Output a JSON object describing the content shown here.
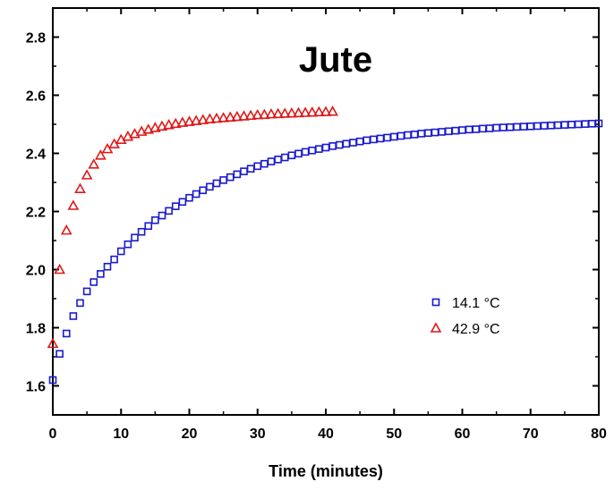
{
  "chart_data": {
    "type": "scatter",
    "title": "Jute",
    "xlabel": "Time (minutes)",
    "ylabel": "",
    "xlim": [
      0,
      80
    ],
    "ylim": [
      1.5,
      2.9
    ],
    "x_ticks": [
      "0",
      "10",
      "20",
      "30",
      "40",
      "50",
      "60",
      "70",
      "80"
    ],
    "y_ticks": [
      "1.6",
      "1.8",
      "2.0",
      "2.2",
      "2.4",
      "2.6",
      "2.8"
    ],
    "grid": false,
    "legend_position": "right",
    "series": [
      {
        "name": "14.1 °C",
        "marker": "square",
        "color": "#1a1acc",
        "x": [
          0,
          1,
          2,
          3,
          4,
          5,
          6,
          7,
          8,
          9,
          10,
          11,
          12,
          13,
          14,
          15,
          16,
          17,
          18,
          19,
          20,
          21,
          22,
          23,
          24,
          25,
          26,
          27,
          28,
          29,
          30,
          31,
          32,
          33,
          34,
          35,
          36,
          37,
          38,
          39,
          40,
          41,
          42,
          43,
          44,
          45,
          46,
          47,
          48,
          49,
          50,
          51,
          52,
          53,
          54,
          55,
          56,
          57,
          58,
          59,
          60,
          61,
          62,
          63,
          64,
          65,
          66,
          67,
          68,
          69,
          70,
          71,
          72,
          73,
          74,
          75,
          76,
          77,
          78,
          79,
          80
        ],
        "y": [
          1.62,
          1.71,
          1.78,
          1.84,
          1.885,
          1.925,
          1.957,
          1.985,
          2.01,
          2.035,
          2.063,
          2.087,
          2.11,
          2.13,
          2.15,
          2.17,
          2.186,
          2.202,
          2.218,
          2.233,
          2.247,
          2.26,
          2.273,
          2.285,
          2.297,
          2.308,
          2.318,
          2.328,
          2.338,
          2.347,
          2.356,
          2.364,
          2.372,
          2.379,
          2.386,
          2.393,
          2.399,
          2.405,
          2.41,
          2.415,
          2.42,
          2.425,
          2.429,
          2.433,
          2.437,
          2.441,
          2.445,
          2.448,
          2.451,
          2.454,
          2.457,
          2.46,
          2.463,
          2.465,
          2.468,
          2.47,
          2.472,
          2.474,
          2.476,
          2.478,
          2.48,
          2.482,
          2.483,
          2.485,
          2.486,
          2.488,
          2.489,
          2.49,
          2.491,
          2.492,
          2.493,
          2.494,
          2.495,
          2.496,
          2.497,
          2.498,
          2.499,
          2.5,
          2.501,
          2.502,
          2.503
        ]
      },
      {
        "name": "42.9 °C",
        "marker": "triangle",
        "color": "#e01818",
        "x": [
          0,
          1,
          2,
          3,
          4,
          5,
          6,
          7,
          8,
          9,
          10,
          11,
          12,
          13,
          14,
          15,
          16,
          17,
          18,
          19,
          20,
          21,
          22,
          23,
          24,
          25,
          26,
          27,
          28,
          29,
          30,
          31,
          32,
          33,
          34,
          35,
          36,
          37,
          38,
          39,
          40,
          41
        ],
        "y": [
          1.745,
          2.0,
          2.135,
          2.22,
          2.278,
          2.325,
          2.362,
          2.393,
          2.415,
          2.432,
          2.447,
          2.458,
          2.467,
          2.475,
          2.482,
          2.488,
          2.493,
          2.498,
          2.502,
          2.506,
          2.509,
          2.512,
          2.515,
          2.518,
          2.52,
          2.522,
          2.524,
          2.526,
          2.528,
          2.53,
          2.532,
          2.533,
          2.535,
          2.536,
          2.537,
          2.538,
          2.539,
          2.54,
          2.541,
          2.542,
          2.543,
          2.544
        ]
      }
    ]
  }
}
